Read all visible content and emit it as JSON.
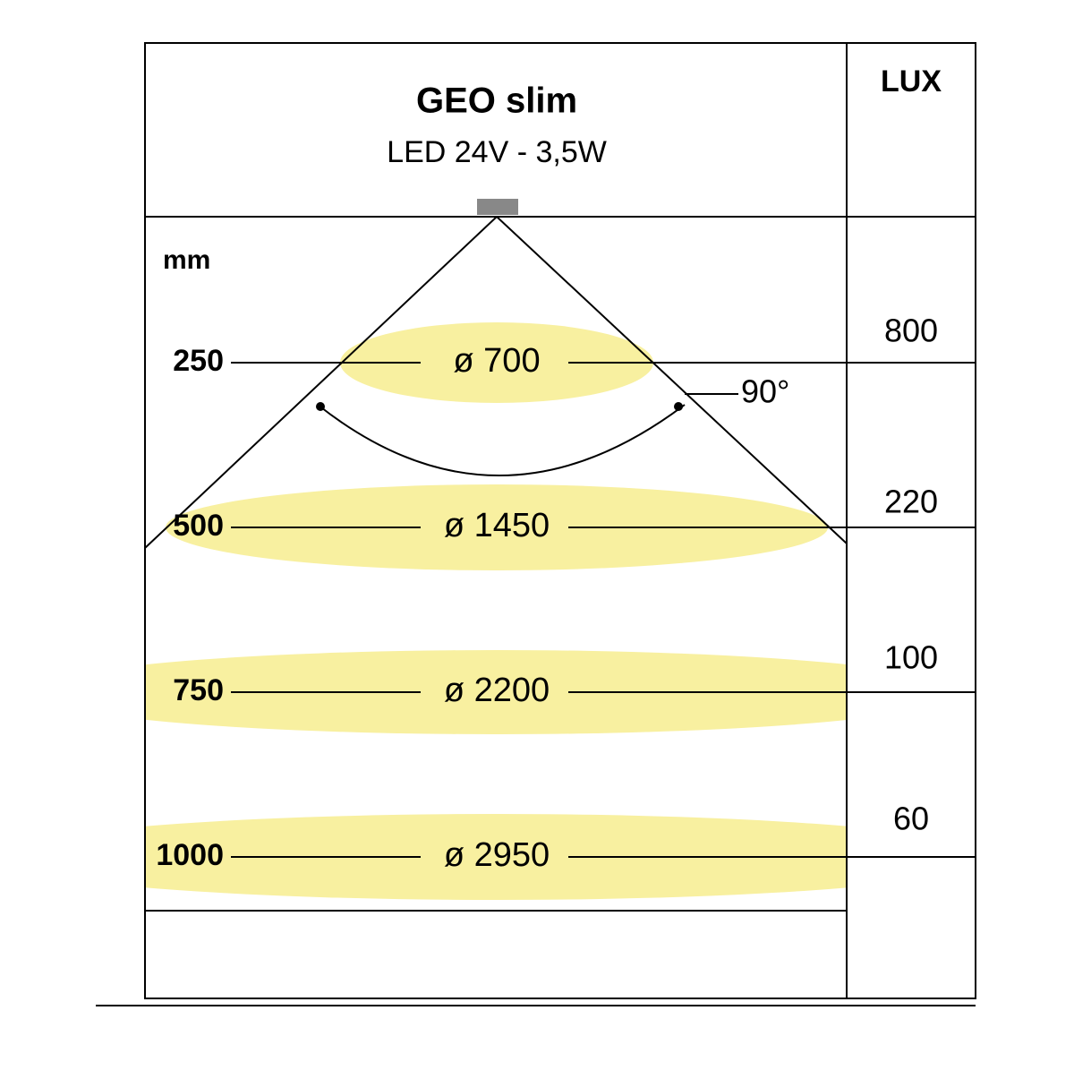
{
  "header": {
    "title": "GEO slim",
    "subtitle": "LED 24V - 3,5W",
    "unit_column": "LUX"
  },
  "distance_unit": "mm",
  "beam_angle": "90°",
  "rows": [
    {
      "distance": "250",
      "diameter": "ø 700",
      "lux": "800"
    },
    {
      "distance": "500",
      "diameter": "ø 1450",
      "lux": "220"
    },
    {
      "distance": "750",
      "diameter": "ø 2200",
      "lux": "100"
    },
    {
      "distance": "1000",
      "diameter": "ø 2950",
      "lux": "60"
    }
  ]
}
